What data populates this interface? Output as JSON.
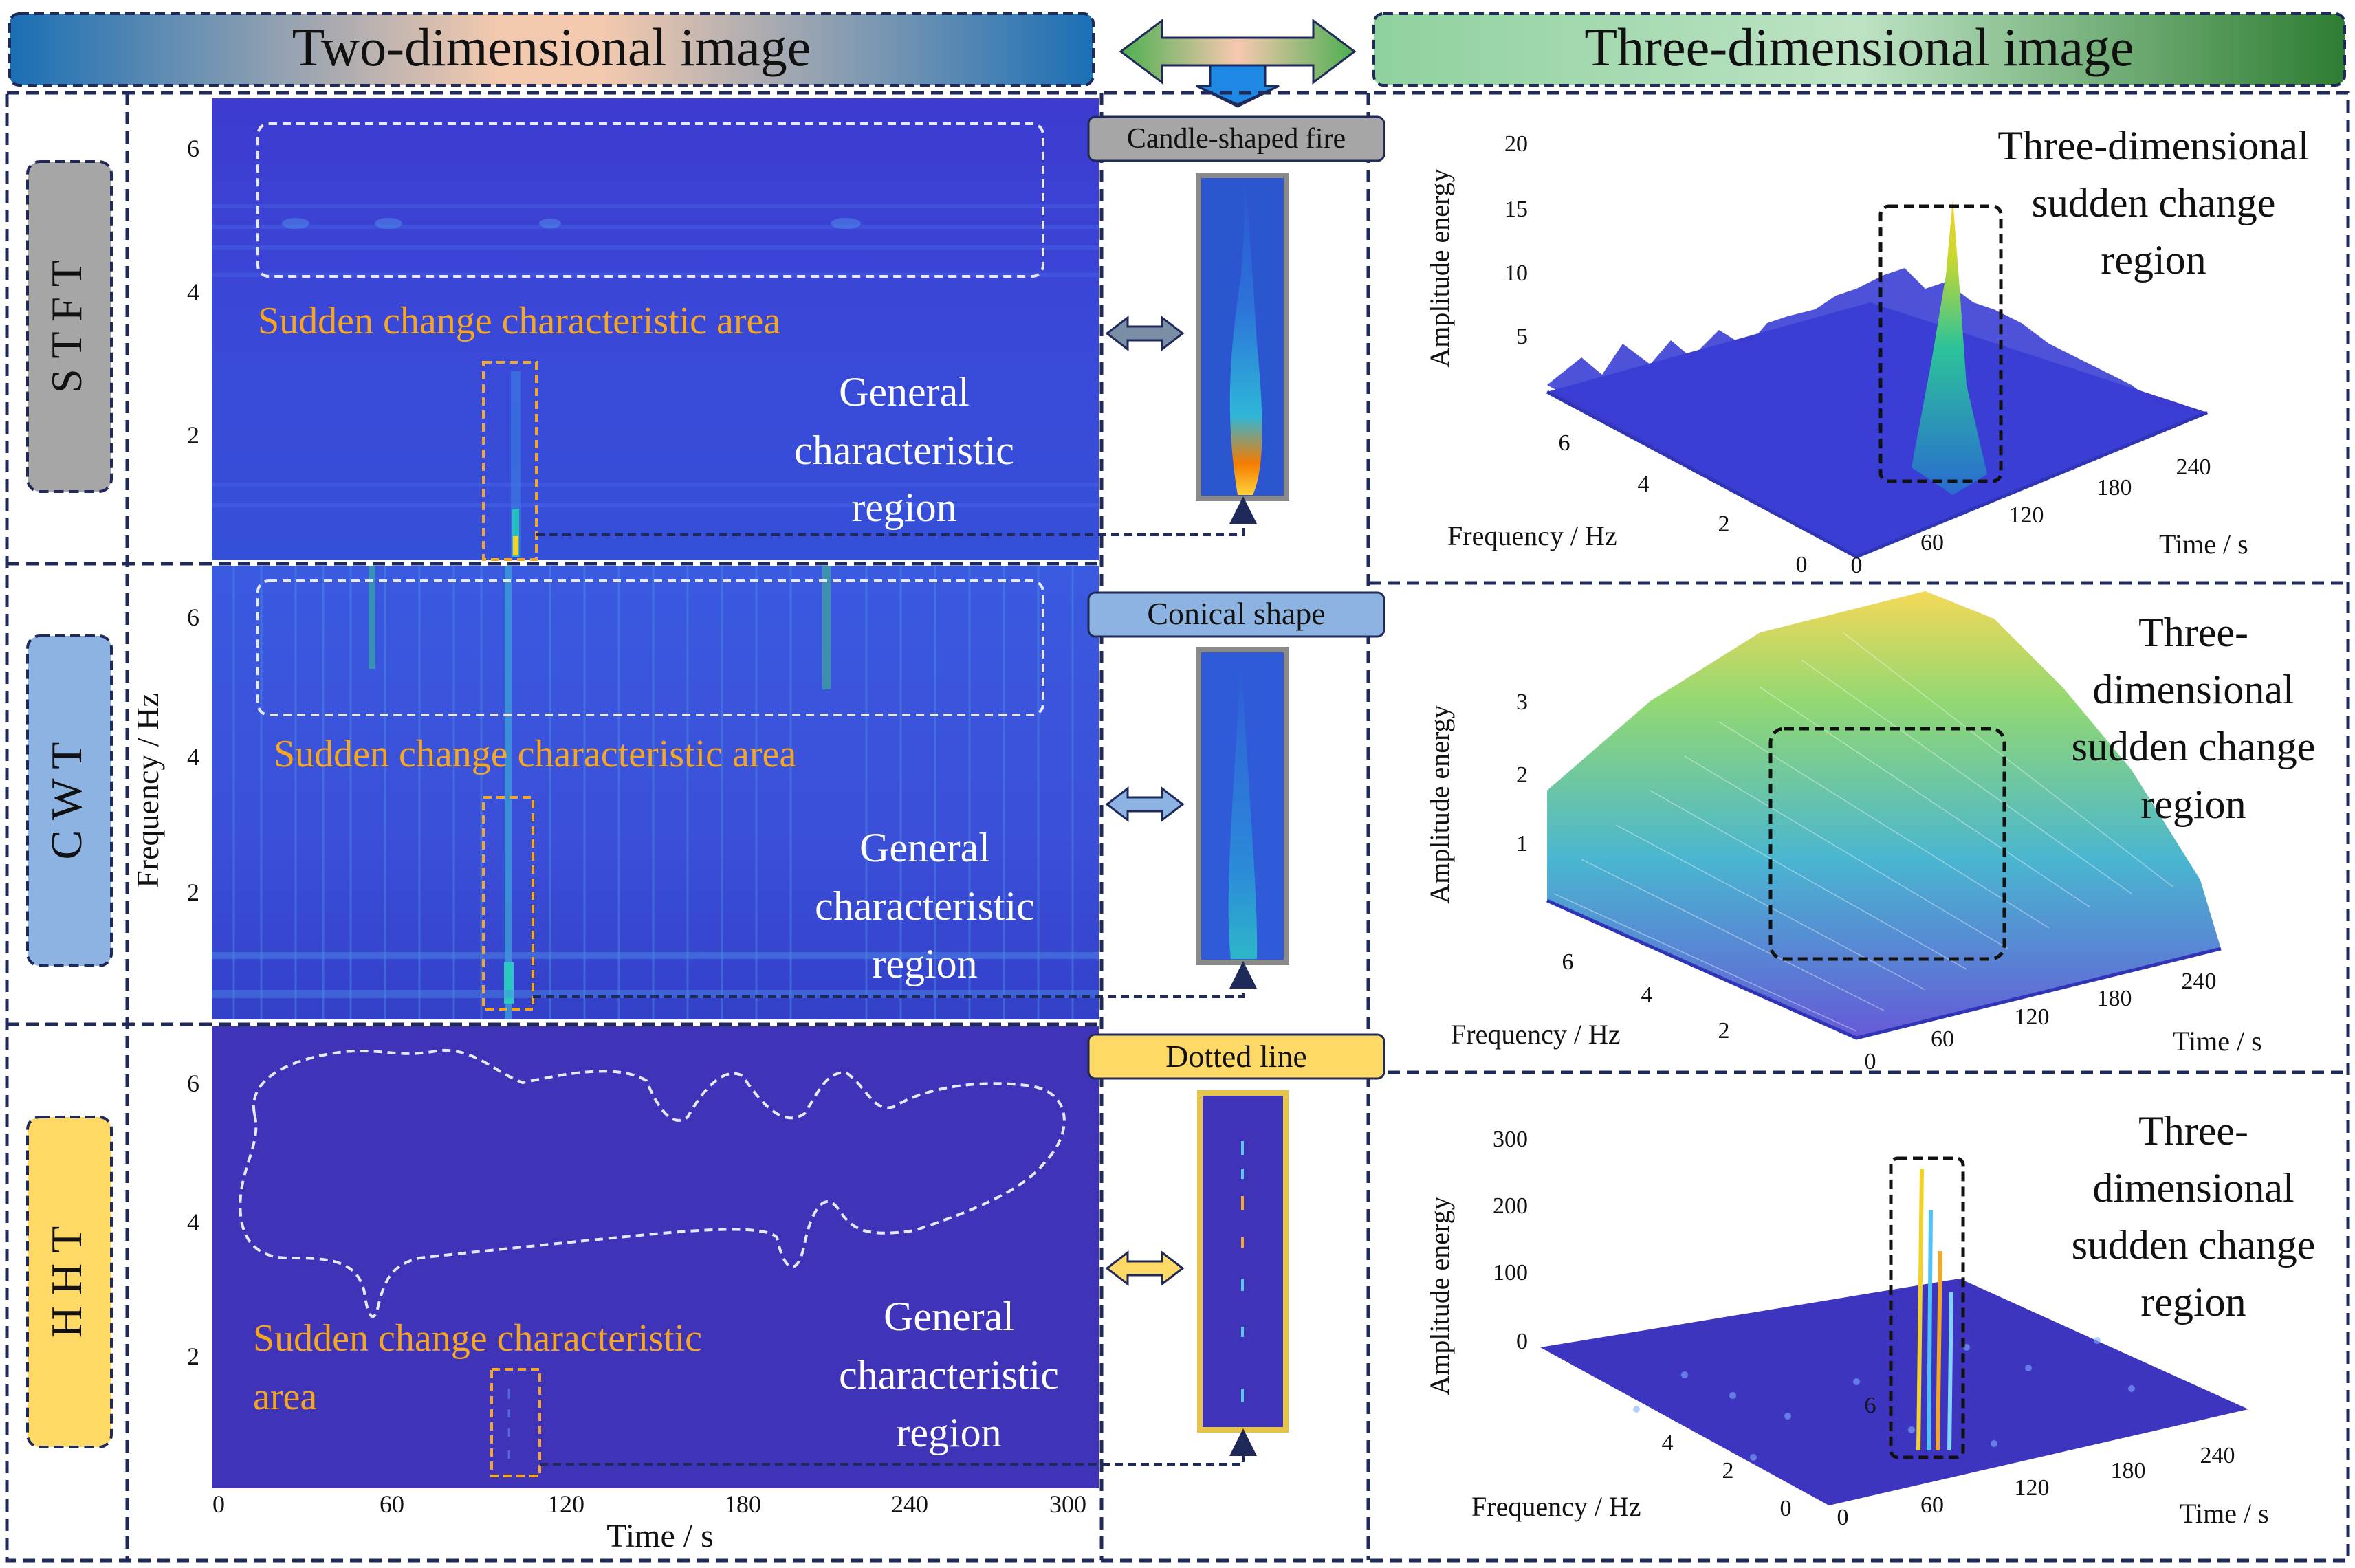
{
  "header": {
    "left_title": "Two-dimensional image",
    "right_title": "Three-dimensional image"
  },
  "methods": [
    {
      "name": "S T F T"
    },
    {
      "name": "C W T"
    },
    {
      "name": "H H T"
    }
  ],
  "labels": {
    "sudden_area": "Sudden change characteristic area",
    "sudden_area_line1": "Sudden change characteristic",
    "sudden_area_line2": "area",
    "general_1": "General",
    "general_2": "characteristic",
    "general_3": "region",
    "three_d_1": "Three-dimensional",
    "three_d_2": "sudden change",
    "three_d_3": "region",
    "three_d_b1": "Three-",
    "three_d_b2": "dimensional",
    "three_d_b3": "sudden change",
    "three_d_b4": "region"
  },
  "shapes": {
    "stft": "Candle-shaped fire",
    "cwt": "Conical shape",
    "hht": "Dotted line"
  },
  "axes2d": {
    "ylabel": "Frequency / Hz",
    "xlabel": "Time / s",
    "xticks": [
      "0",
      "60",
      "120",
      "180",
      "240",
      "300"
    ],
    "yticks": [
      "2",
      "4",
      "6"
    ]
  },
  "axes3d": {
    "zlabel": "Amplitude energy",
    "freq_label": "Frequency / Hz",
    "time_label": "Time / s",
    "stft_z": [
      "20",
      "15",
      "10",
      "5"
    ],
    "cwt_z": [
      "3",
      "2",
      "1"
    ],
    "hht_z": [
      "300",
      "200",
      "100",
      "0"
    ],
    "freq_ticks": [
      "6",
      "4",
      "2",
      "0"
    ],
    "time_ticks": [
      "0",
      "60",
      "120",
      "180",
      "240"
    ]
  },
  "colors": {
    "bg_blue": "#3b38c9",
    "hht_blue": "#3f33b8",
    "orange": "#f5a623",
    "stft_badge": "#a6a6a6",
    "cwt_badge": "#8db3e2",
    "hht_badge": "#ffd966",
    "dark_navy": "#1f2a5a"
  }
}
